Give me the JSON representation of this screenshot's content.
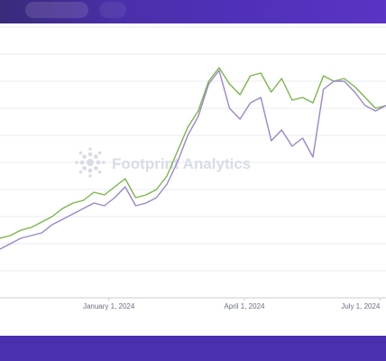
{
  "watermark": {
    "text": "Footprint Analytics",
    "icon": "footprint-logo-icon"
  },
  "colors": {
    "series_1": "#7ab648",
    "series_2": "#9b84d0",
    "grid": "#e9ebf0",
    "band": "#4a2fae"
  },
  "chart_data": {
    "type": "line",
    "xlabel": "",
    "ylabel": "",
    "grid": true,
    "x_range": [
      "2023-10-20",
      "2024-07-05"
    ],
    "y_range": [
      0,
      100
    ],
    "x_ticks": [
      {
        "date": "2024-01-01",
        "label": "January 1, 2024"
      },
      {
        "date": "2024-04-01",
        "label": "April 1, 2024"
      },
      {
        "date": "2024-07-01",
        "label": "July 1, 2024"
      }
    ],
    "series": [
      {
        "color": "#7ab648",
        "points": [
          [
            "2023-10-20",
            22
          ],
          [
            "2023-10-27",
            23
          ],
          [
            "2023-11-03",
            25
          ],
          [
            "2023-11-10",
            26
          ],
          [
            "2023-11-17",
            28
          ],
          [
            "2023-11-24",
            30
          ],
          [
            "2023-12-01",
            33
          ],
          [
            "2023-12-08",
            35
          ],
          [
            "2023-12-15",
            36
          ],
          [
            "2023-12-22",
            39
          ],
          [
            "2023-12-29",
            38
          ],
          [
            "2024-01-05",
            41
          ],
          [
            "2024-01-12",
            44
          ],
          [
            "2024-01-19",
            37
          ],
          [
            "2024-01-26",
            38
          ],
          [
            "2024-02-02",
            40
          ],
          [
            "2024-02-09",
            45
          ],
          [
            "2024-02-16",
            54
          ],
          [
            "2024-02-23",
            63
          ],
          [
            "2024-03-01",
            69
          ],
          [
            "2024-03-08",
            80
          ],
          [
            "2024-03-15",
            85
          ],
          [
            "2024-03-22",
            79
          ],
          [
            "2024-03-29",
            75
          ],
          [
            "2024-04-05",
            82
          ],
          [
            "2024-04-12",
            83
          ],
          [
            "2024-04-19",
            76
          ],
          [
            "2024-04-26",
            81
          ],
          [
            "2024-05-03",
            73
          ],
          [
            "2024-05-10",
            74
          ],
          [
            "2024-05-17",
            72
          ],
          [
            "2024-05-24",
            82
          ],
          [
            "2024-05-31",
            80
          ],
          [
            "2024-06-07",
            81
          ],
          [
            "2024-06-14",
            78
          ],
          [
            "2024-06-21",
            74
          ],
          [
            "2024-06-28",
            70
          ],
          [
            "2024-07-05",
            71
          ]
        ]
      },
      {
        "color": "#9b84d0",
        "points": [
          [
            "2023-10-20",
            18
          ],
          [
            "2023-10-27",
            20
          ],
          [
            "2023-11-03",
            22
          ],
          [
            "2023-11-10",
            23
          ],
          [
            "2023-11-17",
            24
          ],
          [
            "2023-11-24",
            27
          ],
          [
            "2023-12-01",
            29
          ],
          [
            "2023-12-08",
            31
          ],
          [
            "2023-12-15",
            33
          ],
          [
            "2023-12-22",
            35
          ],
          [
            "2023-12-29",
            34
          ],
          [
            "2024-01-05",
            37
          ],
          [
            "2024-01-12",
            41
          ],
          [
            "2024-01-19",
            34
          ],
          [
            "2024-01-26",
            35
          ],
          [
            "2024-02-02",
            37
          ],
          [
            "2024-02-09",
            42
          ],
          [
            "2024-02-16",
            50
          ],
          [
            "2024-02-23",
            60
          ],
          [
            "2024-03-01",
            67
          ],
          [
            "2024-03-08",
            79
          ],
          [
            "2024-03-15",
            84
          ],
          [
            "2024-03-22",
            70
          ],
          [
            "2024-03-29",
            66
          ],
          [
            "2024-04-05",
            72
          ],
          [
            "2024-04-12",
            74
          ],
          [
            "2024-04-19",
            58
          ],
          [
            "2024-04-26",
            62
          ],
          [
            "2024-05-03",
            56
          ],
          [
            "2024-05-10",
            59
          ],
          [
            "2024-05-17",
            52
          ],
          [
            "2024-05-24",
            77
          ],
          [
            "2024-05-31",
            80
          ],
          [
            "2024-06-07",
            80
          ],
          [
            "2024-06-14",
            76
          ],
          [
            "2024-06-21",
            71
          ],
          [
            "2024-06-28",
            69
          ],
          [
            "2024-07-05",
            71
          ]
        ]
      }
    ]
  }
}
